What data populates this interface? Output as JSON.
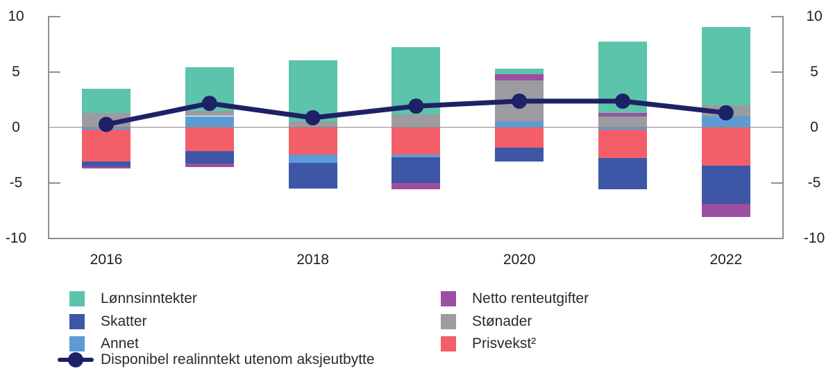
{
  "colors": {
    "lonnsinntekter": "#5CC4AA",
    "skatter": "#3D56A6",
    "annet": "#5D9BD7",
    "netto": "#9B4FA0",
    "stonader": "#9C9BA0",
    "prisvekst": "#F25F68",
    "line": "#1E2167",
    "axis": "#8F8F94",
    "zero_line": "#8A8A8F",
    "tick_text": "#202020",
    "legend_text": "#2A2A2A",
    "background": "#FFFFFF"
  },
  "axes": {
    "y_ticks_left": [
      "10",
      "5",
      "0",
      "-5",
      "-10"
    ],
    "y_ticks_right": [
      "10",
      "5",
      "0",
      "-5",
      "-10"
    ],
    "x_labels_shown": [
      "2016",
      "2018",
      "2020",
      "2022"
    ]
  },
  "legend": {
    "left_items": [
      {
        "key": "lonnsinntekter",
        "label": "Lønnsinntekter"
      },
      {
        "key": "skatter",
        "label": "Skatter"
      },
      {
        "key": "annet",
        "label": "Annet"
      }
    ],
    "right_items": [
      {
        "key": "netto",
        "label": "Netto renteutgifter"
      },
      {
        "key": "stonader",
        "label": "Stønader"
      },
      {
        "key": "prisvekst",
        "label": "Prisvekst²"
      }
    ],
    "line_item": {
      "key": "line",
      "label": "Disponibel realinntekt utenom aksjeutbytte"
    }
  },
  "chart_data": {
    "type": "bar",
    "subtype": "stacked-bars-with-line-overlay",
    "title": "",
    "xlabel": "",
    "ylabel": "",
    "ylim": [
      -10,
      10
    ],
    "y_ticks": [
      10,
      5,
      0,
      -5,
      -10
    ],
    "grid": "zero-line-only",
    "legend_position": "bottom-two-columns",
    "categories": [
      "2016",
      "2017",
      "2018",
      "2019",
      "2020",
      "2021",
      "2022"
    ],
    "x_tick_labels_shown": [
      "2016",
      "2018",
      "2020",
      "2022"
    ],
    "series": [
      {
        "name": "Lønnsinntekter",
        "key": "lonnsinntekter",
        "values": [
          2.15,
          3.95,
          5.5,
          6.1,
          0.5,
          6.45,
          7.1
        ]
      },
      {
        "name": "Skatter",
        "key": "skatter",
        "values": [
          -0.45,
          -1.15,
          -2.35,
          -2.35,
          -1.25,
          -2.8,
          -3.45
        ]
      },
      {
        "name": "Annet",
        "key": "annet",
        "values": [
          -0.2,
          1.0,
          -0.75,
          -0.25,
          0.55,
          -0.2,
          0.95
        ]
      },
      {
        "name": "Netto renteutgifter",
        "key": "netto",
        "values": [
          -0.2,
          -0.3,
          0,
          -0.55,
          0.6,
          0.35,
          -1.2
        ]
      },
      {
        "name": "Stønader",
        "key": "stonader",
        "values": [
          1.3,
          0.45,
          0.55,
          1.15,
          3.65,
          0.95,
          1.0
        ]
      },
      {
        "name": "Prisvekst²",
        "key": "prisvekst",
        "values": [
          -2.9,
          -2.15,
          -2.45,
          -2.45,
          -1.85,
          -2.6,
          -3.45
        ]
      }
    ],
    "line_series": {
      "name": "Disponibel realinntekt utenom aksjeutbytte",
      "values": [
        0.25,
        2.15,
        0.85,
        1.9,
        2.35,
        2.35,
        1.3
      ]
    },
    "stacks": [
      {
        "year": "2016",
        "pos": [
          [
            "stonader",
            1.3
          ],
          [
            "lonnsinntekter",
            2.15
          ]
        ],
        "neg": [
          [
            "annet",
            0.2
          ],
          [
            "prisvekst",
            2.9
          ],
          [
            "skatter",
            0.45
          ],
          [
            "netto",
            0.2
          ]
        ]
      },
      {
        "year": "2017",
        "pos": [
          [
            "annet",
            1.0
          ],
          [
            "stonader",
            0.45
          ],
          [
            "lonnsinntekter",
            3.95
          ]
        ],
        "neg": [
          [
            "prisvekst",
            2.15
          ],
          [
            "skatter",
            1.15
          ],
          [
            "netto",
            0.3
          ]
        ]
      },
      {
        "year": "2018",
        "pos": [
          [
            "stonader",
            0.55
          ],
          [
            "lonnsinntekter",
            5.5
          ]
        ],
        "neg": [
          [
            "prisvekst",
            2.45
          ],
          [
            "annet",
            0.75
          ],
          [
            "skatter",
            2.35
          ]
        ]
      },
      {
        "year": "2019",
        "pos": [
          [
            "stonader",
            1.15
          ],
          [
            "lonnsinntekter",
            6.1
          ]
        ],
        "neg": [
          [
            "prisvekst",
            2.45
          ],
          [
            "annet",
            0.25
          ],
          [
            "skatter",
            2.35
          ],
          [
            "netto",
            0.55
          ]
        ]
      },
      {
        "year": "2020",
        "pos": [
          [
            "annet",
            0.55
          ],
          [
            "stonader",
            3.65
          ],
          [
            "netto",
            0.6
          ],
          [
            "lonnsinntekter",
            0.5
          ]
        ],
        "neg": [
          [
            "prisvekst",
            1.85
          ],
          [
            "skatter",
            1.25
          ]
        ]
      },
      {
        "year": "2021",
        "pos": [
          [
            "stonader",
            0.95
          ],
          [
            "netto",
            0.35
          ],
          [
            "lonnsinntekter",
            6.45
          ]
        ],
        "neg": [
          [
            "annet",
            0.2
          ],
          [
            "prisvekst",
            2.6
          ],
          [
            "skatter",
            2.8
          ]
        ]
      },
      {
        "year": "2022",
        "pos": [
          [
            "annet",
            0.95
          ],
          [
            "stonader",
            1.0
          ],
          [
            "lonnsinntekter",
            7.1
          ]
        ],
        "neg": [
          [
            "prisvekst",
            3.45
          ],
          [
            "skatter",
            3.45
          ],
          [
            "netto",
            1.2
          ]
        ]
      }
    ]
  }
}
